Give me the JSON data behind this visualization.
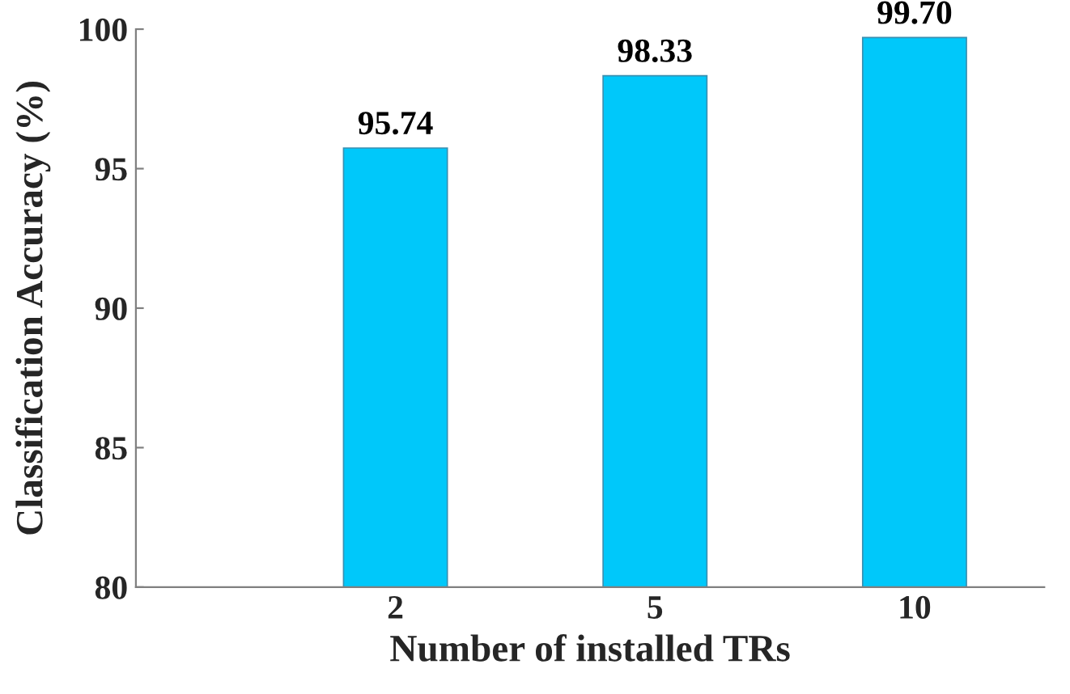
{
  "chart_data": {
    "type": "bar",
    "xlabel": "Number of installed TRs",
    "ylabel": "Classification Accuracy (%)",
    "categories": [
      "2",
      "5",
      "10"
    ],
    "values": [
      95.74,
      98.33,
      99.7
    ],
    "color": "#00c8fa",
    "ylim": [
      80,
      100
    ],
    "yticks": [
      80,
      85,
      90,
      95,
      100
    ],
    "grid": false,
    "data_labels": true,
    "value_labels": [
      "95.74",
      "98.33",
      "99.70"
    ]
  }
}
